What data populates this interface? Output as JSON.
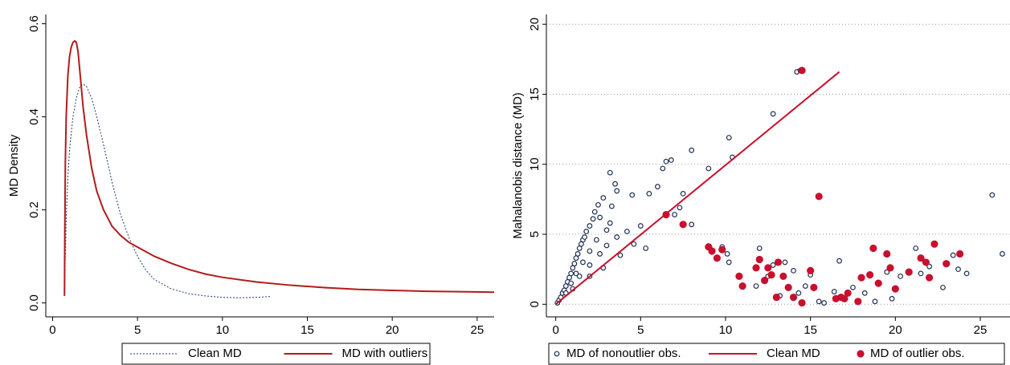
{
  "chart_data": [
    {
      "type": "line",
      "ylabel": "MD Density",
      "xlim": [
        -0.4,
        26
      ],
      "ylim": [
        -0.03,
        0.62
      ],
      "xticks": [
        0,
        5,
        10,
        15,
        20,
        25
      ],
      "yticks": [
        {
          "value": 0,
          "label": "0.0"
        },
        0.2,
        0.4,
        0.6
      ],
      "legend_position": "bottom",
      "series": [
        {
          "name": "Clean MD",
          "color": "#1f3b73",
          "dash": "dotted",
          "x": [
            0.7,
            0.75,
            0.8,
            0.9,
            1.0,
            1.2,
            1.4,
            1.6,
            1.8,
            2.0,
            2.3,
            2.6,
            3.0,
            3.5,
            4.0,
            4.5,
            5,
            5.5,
            6,
            7,
            8,
            9,
            10,
            11,
            12,
            12.9
          ],
          "values": [
            0.015,
            0.1,
            0.18,
            0.27,
            0.33,
            0.4,
            0.44,
            0.465,
            0.47,
            0.465,
            0.44,
            0.4,
            0.34,
            0.26,
            0.19,
            0.14,
            0.1,
            0.07,
            0.05,
            0.03,
            0.02,
            0.015,
            0.012,
            0.011,
            0.012,
            0.014
          ]
        },
        {
          "name": "MD with outliers",
          "color": "#b31b1b",
          "dash": "solid",
          "x": [
            0.7,
            0.72,
            0.75,
            0.8,
            0.9,
            1.0,
            1.1,
            1.2,
            1.3,
            1.4,
            1.5,
            1.6,
            1.8,
            2.0,
            2.3,
            2.6,
            3.0,
            3.5,
            4.0,
            4.5,
            5,
            6,
            7,
            8,
            9,
            10,
            12,
            14,
            16,
            18,
            20,
            22,
            24,
            26
          ],
          "values": [
            0.015,
            0.15,
            0.3,
            0.4,
            0.49,
            0.53,
            0.55,
            0.56,
            0.563,
            0.56,
            0.54,
            0.5,
            0.42,
            0.36,
            0.29,
            0.24,
            0.2,
            0.165,
            0.145,
            0.13,
            0.12,
            0.1,
            0.085,
            0.072,
            0.062,
            0.055,
            0.045,
            0.038,
            0.033,
            0.029,
            0.027,
            0.025,
            0.024,
            0.023
          ]
        }
      ]
    },
    {
      "type": "scatter",
      "ylabel": "Mahalanobis distance (MD)",
      "xlim": [
        -0.55,
        26.75
      ],
      "ylim": [
        -0.9,
        20.7
      ],
      "xticks": [
        0,
        5,
        10,
        15,
        20,
        25
      ],
      "yticks": [
        0,
        5,
        10,
        15,
        20
      ],
      "grid": true,
      "legend_position": "bottom",
      "series": [
        {
          "name": "MD of nonoutlier obs.",
          "color": "#1f2f55",
          "type": "scatter",
          "marker": "hollow",
          "x": [
            0.1,
            0.2,
            0.3,
            0.4,
            0.5,
            0.6,
            0.7,
            0.8,
            0.9,
            1.0,
            1.1,
            1.2,
            1.3,
            1.4,
            1.5,
            1.6,
            1.7,
            1.8,
            2.0,
            2.2,
            2.3,
            2.5,
            2.6,
            2.8,
            3.0,
            3.2,
            3.3,
            3.5,
            3.6,
            3.2,
            2.4,
            2.0,
            1.6,
            1.2,
            0.9,
            0.6,
            1.4,
            2.0,
            2.6,
            3.0,
            3.6,
            4.2,
            4.6,
            3.8,
            2.8,
            2.0,
            1.0,
            4.5,
            5.0,
            5.3,
            5.5,
            6.0,
            6.3,
            6.5,
            6.8,
            7.0,
            7.3,
            7.5,
            8.0,
            8.0,
            9.0,
            10.2,
            10.4,
            12.8,
            14.2,
            9.8,
            10.1,
            10.2,
            11.8,
            12.0,
            12.5,
            12.8,
            13.2,
            13.5,
            14.0,
            14.3,
            14.7,
            15.0,
            15.5,
            15.8,
            16.4,
            16.7,
            17.5,
            18.2,
            18.8,
            19.5,
            19.8,
            20.3,
            21.2,
            21.5,
            22.0,
            22.8,
            23.4,
            23.7,
            24.2,
            25.7,
            26.3,
            14.4
          ],
          "values": [
            0.1,
            0.3,
            0.5,
            0.8,
            1.0,
            1.3,
            1.6,
            1.9,
            2.2,
            2.6,
            2.9,
            3.3,
            3.6,
            4.0,
            4.3,
            4.6,
            4.8,
            5.2,
            5.6,
            6.1,
            6.6,
            7.1,
            6.2,
            7.6,
            5.3,
            9.4,
            7.0,
            8.6,
            8.1,
            5.8,
            4.6,
            3.8,
            3.0,
            2.2,
            1.5,
            0.8,
            2.0,
            2.8,
            3.6,
            4.2,
            4.8,
            5.2,
            4.3,
            3.5,
            2.6,
            2.0,
            1.1,
            7.8,
            5.6,
            4.0,
            7.9,
            8.4,
            9.7,
            10.2,
            10.3,
            6.4,
            6.9,
            7.9,
            5.7,
            11.0,
            9.7,
            11.9,
            10.5,
            13.6,
            16.6,
            4.1,
            3.6,
            3.0,
            1.3,
            4.0,
            2.0,
            2.8,
            0.6,
            3.0,
            2.4,
            0.8,
            1.3,
            2.1,
            0.2,
            0.1,
            0.9,
            3.1,
            1.2,
            0.8,
            0.2,
            2.3,
            0.4,
            2.0,
            4.0,
            2.2,
            2.7,
            1.2,
            3.5,
            2.5,
            2.2,
            7.8,
            3.6,
            16.7
          ]
        },
        {
          "name": "Clean MD",
          "color": "#c8102e",
          "type": "line",
          "x": [
            0,
            16.7
          ],
          "values": [
            0,
            16.6
          ]
        },
        {
          "name": "MD of outlier obs.",
          "color": "#c8102e",
          "type": "scatter",
          "marker": "filled",
          "x": [
            6.5,
            7.5,
            9.0,
            9.2,
            9.5,
            9.8,
            10.8,
            11.0,
            11.8,
            12.0,
            12.3,
            12.5,
            12.7,
            13.0,
            13.1,
            13.4,
            13.7,
            14.0,
            14.5,
            14.5,
            15.0,
            15.2,
            15.5,
            16.5,
            16.8,
            17.0,
            17.2,
            17.8,
            18.0,
            18.5,
            18.7,
            19.0,
            19.5,
            19.7,
            20.0,
            20.8,
            21.5,
            21.8,
            22.0,
            22.3,
            23.0,
            23.8
          ],
          "values": [
            6.4,
            5.7,
            4.1,
            3.8,
            3.3,
            3.9,
            2.0,
            1.3,
            2.6,
            3.2,
            1.7,
            2.6,
            2.1,
            0.5,
            3.0,
            2.0,
            1.2,
            0.5,
            0.1,
            16.7,
            2.4,
            1.2,
            7.7,
            0.4,
            0.5,
            0.4,
            0.8,
            0.2,
            1.9,
            2.1,
            4.0,
            1.5,
            3.6,
            2.6,
            1.1,
            2.3,
            3.3,
            3.0,
            1.9,
            4.3,
            2.9,
            3.6
          ]
        }
      ]
    }
  ]
}
